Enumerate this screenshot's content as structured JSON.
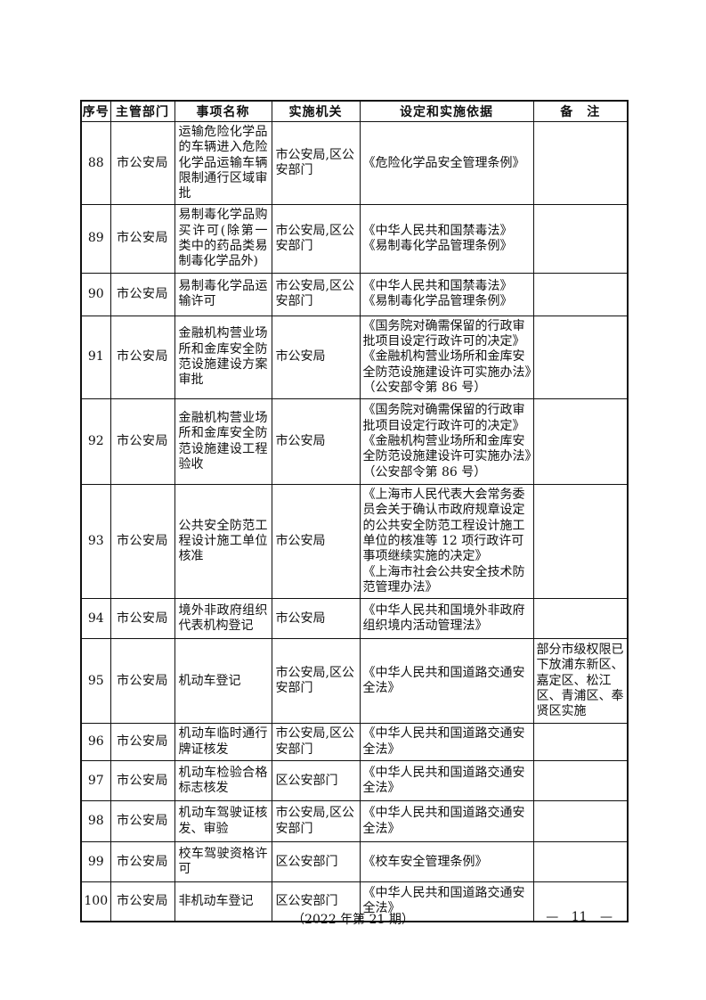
{
  "table": {
    "headers": [
      "序号",
      "主管部门",
      "事项名称",
      "实施机关",
      "设定和实施依据",
      "备　注"
    ],
    "rows": [
      {
        "no": "88",
        "dept": "市公安局",
        "item": "运输危险化学品的车辆进入危险化学品运输车辆限制通行区域审批",
        "agency": "市公安局,区公安部门",
        "basis": [
          "《危险化学品安全管理条例》"
        ],
        "remark": ""
      },
      {
        "no": "89",
        "dept": "市公安局",
        "item": "易制毒化学品购买许可(除第一类中的药品类易制毒化学品外)",
        "agency": "市公安局,区公安部门",
        "basis": [
          "《中华人民共和国禁毒法》",
          "《易制毒化学品管理条例》"
        ],
        "remark": ""
      },
      {
        "no": "90",
        "dept": "市公安局",
        "item": "易制毒化学品运输许可",
        "agency": "市公安局,区公安部门",
        "basis": [
          "《中华人民共和国禁毒法》",
          "《易制毒化学品管理条例》"
        ],
        "remark": ""
      },
      {
        "no": "91",
        "dept": "市公安局",
        "item": "金融机构营业场所和金库安全防范设施建设方案审批",
        "agency": "市公安局",
        "basis": [
          "《国务院对确需保留的行政审批项目设定行政许可的决定》",
          "《金融机构营业场所和金库安全防范设施建设许可实施办法》",
          "（公安部令第 86 号）"
        ],
        "remark": ""
      },
      {
        "no": "92",
        "dept": "市公安局",
        "item": "金融机构营业场所和金库安全防范设施建设工程验收",
        "agency": "市公安局",
        "basis": [
          "《国务院对确需保留的行政审批项目设定行政许可的决定》",
          "《金融机构营业场所和金库安全防范设施建设许可实施办法》",
          "（公安部令第 86 号）"
        ],
        "remark": ""
      },
      {
        "no": "93",
        "dept": "市公安局",
        "item": "公共安全防范工程设计施工单位核准",
        "agency": "市公安局",
        "basis": [
          "《上海市人民代表大会常务委员会关于确认市政府规章设定的公共安全防范工程设计施工单位的核准等 12 项行政许可事项继续实施的决定》",
          "《上海市社会公共安全技术防范管理办法》"
        ],
        "remark": ""
      },
      {
        "no": "94",
        "dept": "市公安局",
        "item": "境外非政府组织代表机构登记",
        "agency": "市公安局",
        "basis": [
          "《中华人民共和国境外非政府组织境内活动管理法》"
        ],
        "remark": ""
      },
      {
        "no": "95",
        "dept": "市公安局",
        "item": "机动车登记",
        "agency": "市公安局,区公安部门",
        "basis": [
          "《中华人民共和国道路交通安全法》"
        ],
        "remark": "部分市级权限已下放浦东新区、嘉定区、松江区、青浦区、奉贤区实施"
      },
      {
        "no": "96",
        "dept": "市公安局",
        "item": "机动车临时通行牌证核发",
        "agency": "市公安局,区公安部门",
        "basis": [
          "《中华人民共和国道路交通安全法》"
        ],
        "remark": ""
      },
      {
        "no": "97",
        "dept": "市公安局",
        "item": "机动车检验合格标志核发",
        "agency": "区公安部门",
        "basis": [
          "《中华人民共和国道路交通安全法》"
        ],
        "remark": ""
      },
      {
        "no": "98",
        "dept": "市公安局",
        "item": "机动车驾驶证核发、审验",
        "agency": "市公安局,区公安部门",
        "basis": [
          "《中华人民共和国道路交通安全法》"
        ],
        "remark": ""
      },
      {
        "no": "99",
        "dept": "市公安局",
        "item": "校车驾驶资格许可",
        "agency": "区公安部门",
        "basis": [
          "《校车安全管理条例》"
        ],
        "remark": ""
      },
      {
        "no": "100",
        "dept": "市公安局",
        "item": "非机动车登记",
        "agency": "区公安部门",
        "basis": [
          "《中华人民共和国道路交通安全法》"
        ],
        "remark": ""
      }
    ]
  },
  "footer": {
    "issue": "（2022 年第 21 期）",
    "page_number": "— 11 —"
  }
}
